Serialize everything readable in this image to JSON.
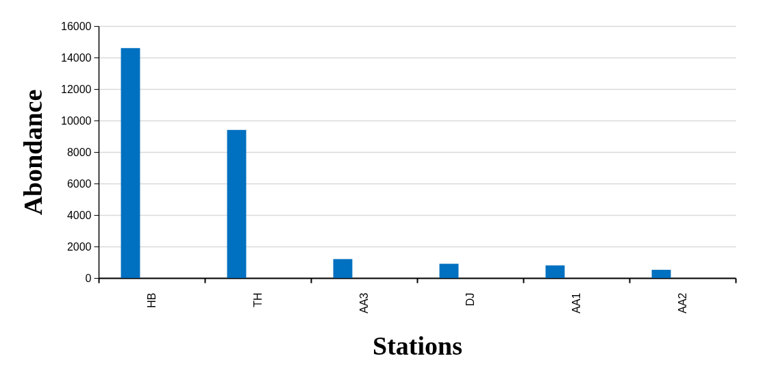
{
  "chart_data": {
    "type": "bar",
    "xlabel": "Stations",
    "ylabel": "Abondance",
    "categories": [
      "HB",
      "TH",
      "AA3",
      "DJ",
      "AA1",
      "AA2"
    ],
    "values": [
      14600,
      9400,
      1200,
      900,
      800,
      520
    ],
    "color": "#0070c0",
    "ylim": [
      0,
      16000
    ],
    "yticks": [
      0,
      2000,
      4000,
      6000,
      8000,
      10000,
      12000,
      14000,
      16000
    ],
    "grid": "y"
  }
}
